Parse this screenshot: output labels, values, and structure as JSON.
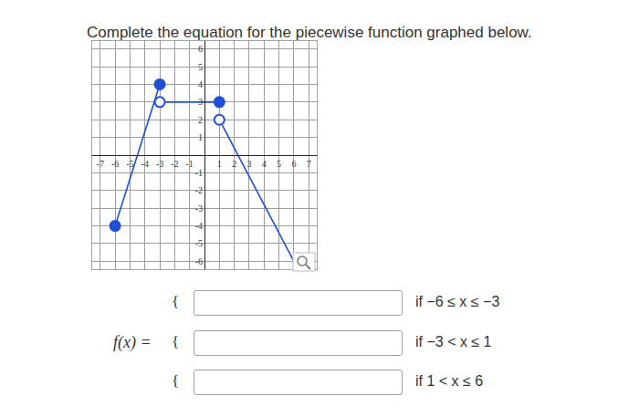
{
  "heading": "Complete the equation for the piecewise function graphed below.",
  "chart_data": {
    "type": "line",
    "color": "#1f4fd6",
    "grid": true,
    "xlim": [
      -7.6,
      7.6
    ],
    "ylim": [
      -6.5,
      6.5
    ],
    "xticks": [
      -7,
      -6,
      -5,
      -4,
      -3,
      -2,
      -1,
      1,
      2,
      3,
      4,
      5,
      6,
      7
    ],
    "yticks": [
      -6,
      -5,
      -4,
      -3,
      -2,
      -1,
      1,
      2,
      3,
      4,
      5,
      6
    ],
    "series": [
      {
        "x": [
          -6,
          -3
        ],
        "values": [
          -4,
          4
        ]
      },
      {
        "x": [
          -3,
          1
        ],
        "values": [
          3,
          3
        ]
      },
      {
        "x": [
          1,
          6
        ],
        "values": [
          2,
          -6
        ]
      }
    ],
    "points": [
      {
        "x": -6,
        "y": -4,
        "marker": "filled"
      },
      {
        "x": -3,
        "y": 4,
        "marker": "filled"
      },
      {
        "x": -3,
        "y": 3,
        "marker": "open"
      },
      {
        "x": 1,
        "y": 3,
        "marker": "filled"
      },
      {
        "x": 1,
        "y": 2,
        "marker": "open"
      }
    ]
  },
  "form": {
    "lhs": "f(x) =",
    "brace": "{",
    "conditions": [
      "if −6 ≤ x ≤ −3",
      "if −3 < x ≤ 1",
      "if 1 < x ≤ 6"
    ]
  }
}
